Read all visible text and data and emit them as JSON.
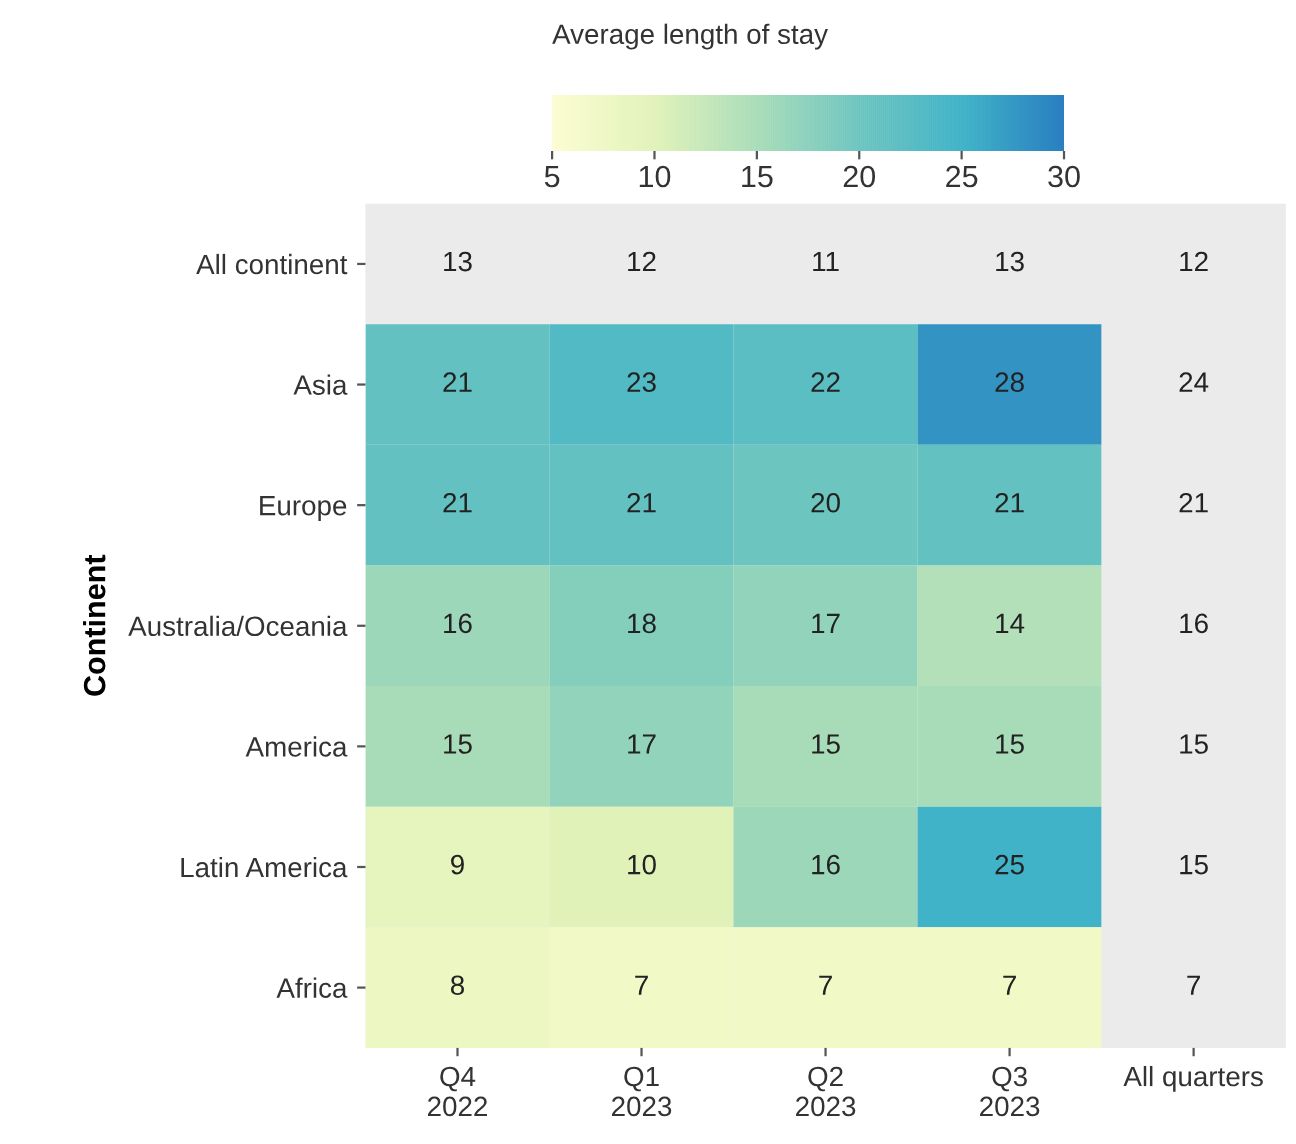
{
  "chart_data": {
    "type": "heatmap",
    "ylabel": "Continent",
    "clabel": "Average length of stay",
    "categories": [
      "Q4\n2022",
      "Q1\n2023",
      "Q2\n2023",
      "Q3\n2023",
      "All quarters"
    ],
    "y_categories": [
      "All continent",
      "Asia",
      "Europe",
      "Australia/Oceania",
      "America",
      "Latin America",
      "Africa"
    ],
    "cells": [
      [
        null,
        null,
        null,
        null,
        null
      ],
      [
        21,
        23,
        22,
        28,
        null
      ],
      [
        21,
        21,
        20,
        21,
        null
      ],
      [
        16,
        18,
        17,
        14,
        null
      ],
      [
        15,
        17,
        15,
        15,
        null
      ],
      [
        9,
        10,
        16,
        25,
        null
      ],
      [
        8,
        7,
        7,
        7,
        null
      ]
    ],
    "cell_labels": [
      [
        "13",
        "12",
        "11",
        "13",
        "12"
      ],
      [
        "21",
        "23",
        "22",
        "28",
        "24"
      ],
      [
        "21",
        "21",
        "20",
        "21",
        "21"
      ],
      [
        "16",
        "18",
        "17",
        "14",
        "16"
      ],
      [
        "15",
        "17",
        "15",
        "15",
        "15"
      ],
      [
        "9",
        "10",
        "16",
        "25",
        "15"
      ],
      [
        "8",
        "7",
        "7",
        "7",
        "7"
      ]
    ],
    "clim": [
      5,
      30
    ],
    "cticks": [
      5,
      10,
      15,
      20,
      25,
      30
    ]
  }
}
